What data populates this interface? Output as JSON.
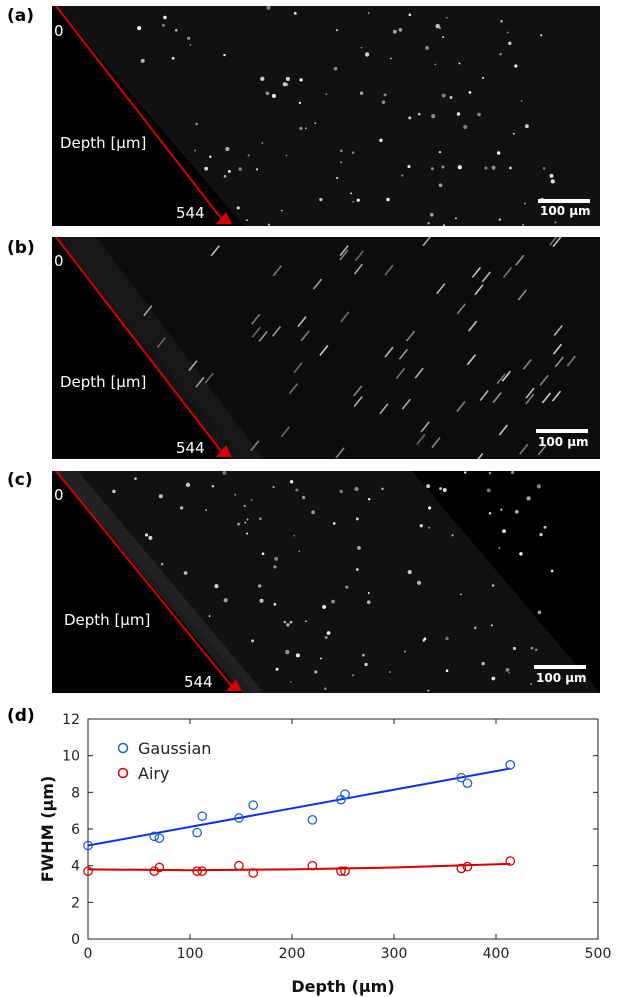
{
  "panels": [
    {
      "label": "(a)",
      "depth_label": "Depth [µm]",
      "depth_start": "0",
      "depth_end": "544",
      "scalebar": "100 µm"
    },
    {
      "label": "(b)",
      "depth_label": "Depth [µm]",
      "depth_start": "0",
      "depth_end": "544",
      "scalebar": "100 µm"
    },
    {
      "label": "(c)",
      "depth_label": "Depth [µm]",
      "depth_start": "0",
      "depth_end": "544",
      "scalebar": "100 µm"
    }
  ],
  "colors": {
    "depth_line": "#d40000",
    "gaussian": "#1f5fd6",
    "airy": "#d40000",
    "panel_bg": "#000000"
  },
  "chart_data": {
    "panel_label": "(d)",
    "type": "scatter",
    "xlabel": "Depth (µm)",
    "ylabel": "FWHM (µm)",
    "xlim": [
      0,
      500
    ],
    "ylim": [
      0,
      12
    ],
    "xticks": [
      "0",
      "100",
      "200",
      "300",
      "400",
      "500"
    ],
    "yticks": [
      "0",
      "2",
      "4",
      "6",
      "8",
      "10",
      "12"
    ],
    "legend_position": "top-left",
    "series": [
      {
        "name": "Gaussian",
        "color": "#1f5fd6",
        "x": [
          0,
          65,
          70,
          107,
          112,
          148,
          162,
          220,
          248,
          252,
          366,
          372,
          414
        ],
        "y": [
          5.1,
          5.6,
          5.5,
          5.8,
          6.7,
          6.6,
          7.3,
          6.5,
          7.6,
          7.9,
          8.8,
          8.5,
          9.5
        ],
        "fit": {
          "x": [
            0,
            414
          ],
          "y": [
            5.1,
            9.3
          ]
        }
      },
      {
        "name": "Airy",
        "color": "#d40000",
        "x": [
          0,
          65,
          70,
          107,
          112,
          148,
          162,
          220,
          248,
          252,
          366,
          372,
          414
        ],
        "y": [
          3.7,
          3.7,
          3.9,
          3.7,
          3.7,
          4.0,
          3.6,
          4.0,
          3.7,
          3.7,
          3.85,
          3.95,
          4.25
        ],
        "fit": {
          "x": [
            0,
            100,
            200,
            300,
            414
          ],
          "y": [
            3.8,
            3.75,
            3.8,
            3.9,
            4.1
          ]
        }
      }
    ]
  }
}
